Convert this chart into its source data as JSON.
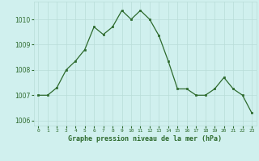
{
  "x": [
    0,
    1,
    2,
    3,
    4,
    5,
    6,
    7,
    8,
    9,
    10,
    11,
    12,
    13,
    14,
    15,
    16,
    17,
    18,
    19,
    20,
    21,
    22,
    23
  ],
  "y": [
    1007.0,
    1007.0,
    1007.3,
    1008.0,
    1008.35,
    1008.8,
    1009.7,
    1009.4,
    1009.7,
    1010.35,
    1010.0,
    1010.35,
    1010.0,
    1009.35,
    1008.35,
    1007.25,
    1007.25,
    1007.0,
    1007.0,
    1007.25,
    1007.7,
    1007.25,
    1007.0,
    1006.3
  ],
  "line_color": "#2d6a2d",
  "marker_color": "#2d6a2d",
  "bg_color": "#d0f0ee",
  "grid_color": "#b8ddd8",
  "title": "Graphe pression niveau de la mer (hPa)",
  "title_color": "#2d6a2d",
  "ylim": [
    1005.8,
    1010.7
  ],
  "yticks": [
    1006,
    1007,
    1008,
    1009,
    1010
  ],
  "font_color": "#2d6a2d"
}
